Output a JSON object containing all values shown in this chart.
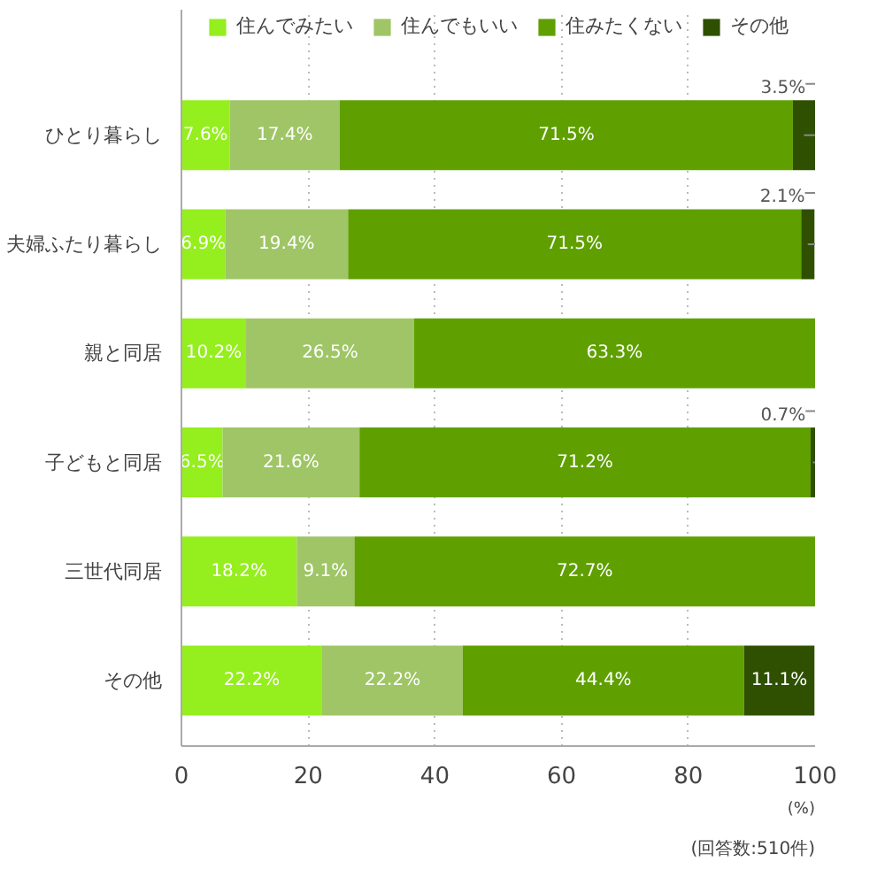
{
  "chart_data": {
    "type": "bar",
    "orientation": "horizontal",
    "stacked": true,
    "categories": [
      "ひとり暮らし",
      "夫婦ふたり暮らし",
      "親と同居",
      "子どもと同居",
      "三世代同居",
      "その他"
    ],
    "series": [
      {
        "name": "住んでみたい",
        "color": "#95ee1e",
        "values": [
          7.6,
          6.9,
          10.2,
          6.5,
          18.2,
          22.2
        ],
        "value_labels": [
          "7.6%",
          "6.9%",
          "10.2%",
          "6.5%",
          "18.2%",
          "22.2%"
        ]
      },
      {
        "name": "住んでもいい",
        "color": "#9fc566",
        "values": [
          17.4,
          19.4,
          26.5,
          21.6,
          9.1,
          22.2
        ],
        "value_labels": [
          "17.4%",
          "19.4%",
          "26.5%",
          "21.6%",
          "9.1%",
          "22.2%"
        ]
      },
      {
        "name": "住みたくない",
        "color": "#5fa000",
        "values": [
          71.5,
          71.5,
          63.3,
          71.2,
          72.7,
          44.4
        ],
        "value_labels": [
          "71.5%",
          "71.5%",
          "63.3%",
          "71.2%",
          "72.7%",
          "44.4%"
        ]
      },
      {
        "name": "その他",
        "color": "#2f5000",
        "values": [
          3.5,
          2.1,
          0,
          0.7,
          0,
          11.1
        ],
        "value_labels": [
          "3.5%",
          "2.1%",
          null,
          "0.7%",
          null,
          "11.1%"
        ]
      }
    ],
    "xlim": [
      0,
      100
    ],
    "xticks": [
      0,
      20,
      40,
      60,
      80,
      100
    ],
    "xlabel": "(%)",
    "grid": "x",
    "legend": "top",
    "annotations": [
      "(回答数:510件)"
    ]
  }
}
